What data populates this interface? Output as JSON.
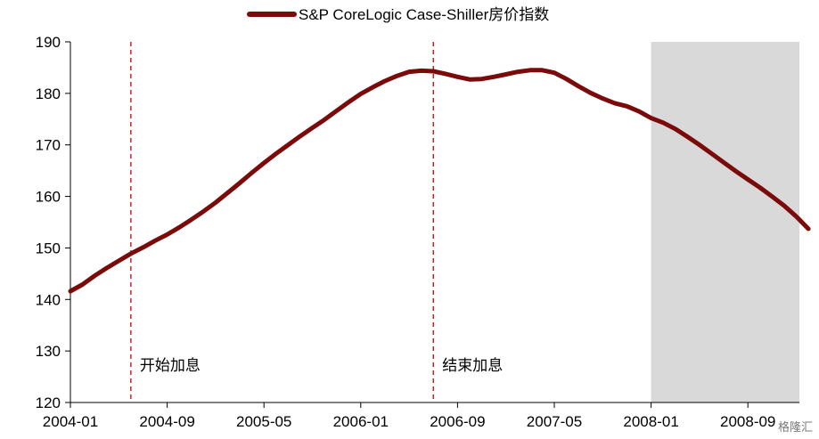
{
  "chart_data": {
    "type": "line",
    "title": "",
    "xlabel": "",
    "ylabel": "",
    "ylim": [
      120,
      190
    ],
    "yticks": [
      120,
      130,
      140,
      150,
      160,
      170,
      180,
      190
    ],
    "xlim": [
      "2004-01",
      "2009-04"
    ],
    "xticks": [
      "2004-01",
      "2004-09",
      "2005-05",
      "2006-01",
      "2006-09",
      "2007-05",
      "2008-01",
      "2008-09"
    ],
    "grid": false,
    "legend": "top-center",
    "series": [
      {
        "name": "S&P CoreLogic Case-Shiller房价指数",
        "color": "#7b0a0a",
        "points": [
          [
            "2004-01",
            141.6
          ],
          [
            "2004-02",
            142.9
          ],
          [
            "2004-03",
            144.6
          ],
          [
            "2004-04",
            146.1
          ],
          [
            "2004-05",
            147.5
          ],
          [
            "2004-06",
            148.9
          ],
          [
            "2004-07",
            150.1
          ],
          [
            "2004-08",
            151.4
          ],
          [
            "2004-09",
            152.6
          ],
          [
            "2004-10",
            154.0
          ],
          [
            "2004-11",
            155.5
          ],
          [
            "2004-12",
            157.1
          ],
          [
            "2005-01",
            158.8
          ],
          [
            "2005-02",
            160.7
          ],
          [
            "2005-03",
            162.6
          ],
          [
            "2005-04",
            164.6
          ],
          [
            "2005-05",
            166.5
          ],
          [
            "2005-06",
            168.3
          ],
          [
            "2005-07",
            170.0
          ],
          [
            "2005-08",
            171.7
          ],
          [
            "2005-09",
            173.3
          ],
          [
            "2005-10",
            174.9
          ],
          [
            "2005-11",
            176.6
          ],
          [
            "2005-12",
            178.3
          ],
          [
            "2006-01",
            179.9
          ],
          [
            "2006-02",
            181.2
          ],
          [
            "2006-03",
            182.4
          ],
          [
            "2006-04",
            183.4
          ],
          [
            "2006-05",
            184.2
          ],
          [
            "2006-06",
            184.4
          ],
          [
            "2006-07",
            184.3
          ],
          [
            "2006-08",
            183.8
          ],
          [
            "2006-09",
            183.2
          ],
          [
            "2006-10",
            182.7
          ],
          [
            "2006-11",
            182.8
          ],
          [
            "2006-12",
            183.2
          ],
          [
            "2007-01",
            183.7
          ],
          [
            "2007-02",
            184.2
          ],
          [
            "2007-03",
            184.5
          ],
          [
            "2007-04",
            184.5
          ],
          [
            "2007-05",
            184.0
          ],
          [
            "2007-06",
            182.8
          ],
          [
            "2007-07",
            181.4
          ],
          [
            "2007-08",
            180.1
          ],
          [
            "2007-09",
            179.0
          ],
          [
            "2007-10",
            178.1
          ],
          [
            "2007-11",
            177.5
          ],
          [
            "2007-12",
            176.5
          ],
          [
            "2008-01",
            175.2
          ],
          [
            "2008-02",
            174.3
          ],
          [
            "2008-03",
            173.1
          ],
          [
            "2008-04",
            171.6
          ],
          [
            "2008-05",
            170.0
          ],
          [
            "2008-06",
            168.3
          ],
          [
            "2008-07",
            166.6
          ],
          [
            "2008-08",
            164.9
          ],
          [
            "2008-09",
            163.3
          ],
          [
            "2008-10",
            161.7
          ],
          [
            "2008-11",
            160.0
          ],
          [
            "2008-12",
            158.2
          ],
          [
            "2009-01",
            156.1
          ],
          [
            "2009-02",
            153.7
          ]
        ]
      }
    ],
    "annotations": [
      {
        "type": "vline",
        "x": "2004-06",
        "color": "#c00000",
        "style": "dashed",
        "label": "开始加息"
      },
      {
        "type": "vline",
        "x": "2006-07",
        "color": "#c00000",
        "style": "dashed",
        "label": "结束加息"
      }
    ],
    "shaded_regions": [
      {
        "x_start": "2008-01",
        "x_end": "2009-04",
        "color": "#d9d9d9"
      }
    ],
    "watermark": "格隆汇"
  }
}
